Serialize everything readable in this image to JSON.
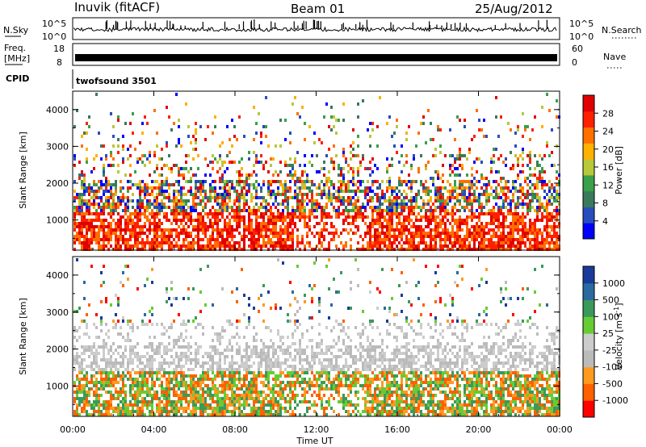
{
  "header": {
    "station": "Inuvik (fitACF)",
    "beam": "Beam 01",
    "date": "25/Aug/2012"
  },
  "top_panels": {
    "nsky_label": "N.Sky",
    "nsky_ticks": [
      "10^5",
      "10^0"
    ],
    "nsearch_label": "N.Search",
    "nsearch_ticks": [
      "10^5",
      "10^0"
    ],
    "freq_label": "Freq.",
    "freq_unit": "[MHz]",
    "freq_ticks": [
      "18",
      "8"
    ],
    "nave_label": "Nave",
    "nave_ticks": [
      "60",
      "0"
    ],
    "cpid_label": "CPID",
    "cpid_text": "twofsound 3501"
  },
  "colors": {
    "power": [
      "#0000ff",
      "#2a4dbd",
      "#3a7a5a",
      "#3aa04a",
      "#b8c83a",
      "#ffb000",
      "#ff7000",
      "#ff2000",
      "#e00000"
    ],
    "velocity": [
      "#ff0000",
      "#ff6000",
      "#ff9a20",
      "#bbbbbb",
      "#cccccc",
      "#66cc33",
      "#3a9a5a",
      "#2a6aa0",
      "#1a3a9a"
    ]
  },
  "chart_data": [
    {
      "type": "heatmap",
      "panel": "power",
      "ylabel": "Slant Range [km]",
      "ylim": [
        180,
        4500
      ],
      "yticks": [
        "1000",
        "2000",
        "3000",
        "4000"
      ],
      "xlim": [
        0,
        24
      ],
      "xticks": [
        "00:00",
        "04:00",
        "08:00",
        "12:00",
        "16:00",
        "20:00",
        "00:00"
      ],
      "colorbar_label": "Power [dB]",
      "colorbar_ticks": [
        "28",
        "24",
        "20",
        "16",
        "12",
        "8",
        "4"
      ],
      "colorbar_range": [
        0,
        32
      ]
    },
    {
      "type": "heatmap",
      "panel": "velocity",
      "ylabel": "Slant Range [km]",
      "ylim": [
        180,
        4500
      ],
      "yticks": [
        "1000",
        "2000",
        "3000",
        "4000"
      ],
      "xlim": [
        0,
        24
      ],
      "xticks": [
        "00:00",
        "04:00",
        "08:00",
        "12:00",
        "16:00",
        "20:00",
        "00:00"
      ],
      "xlabel": "Time UT",
      "colorbar_label": "Velocity [m s",
      "colorbar_unit_sup": "-1",
      "colorbar_unit_close": "]",
      "colorbar_ticks": [
        "1000",
        "500",
        "100",
        "25",
        "-25",
        "-100",
        "-500",
        "-1000"
      ]
    }
  ]
}
